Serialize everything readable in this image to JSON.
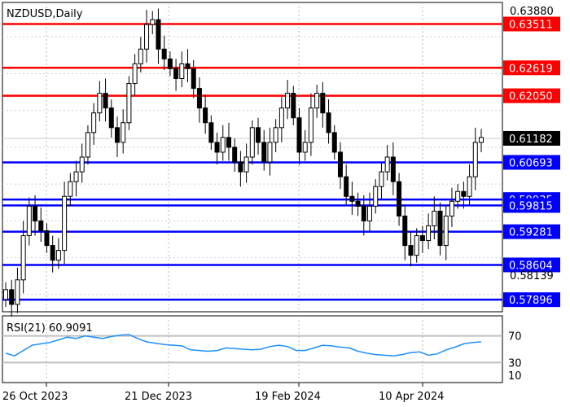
{
  "chart_data": {
    "type": "candlestick",
    "symbol_title": "NZDUSD,Daily",
    "price_axis": {
      "min": 0.5765,
      "max": 0.6395,
      "tick_labels": [
        "0.63880",
        "0.58139"
      ]
    },
    "dates": [
      "26 Oct 2023",
      "21 Dec 2023",
      "19 Feb 2024",
      "10 Apr 2024"
    ],
    "levels": [
      {
        "label": "0.63511",
        "value": 0.63511,
        "color": "#ff0000"
      },
      {
        "label": "0.62619",
        "value": 0.62619,
        "color": "#ff0000"
      },
      {
        "label": "0.62050",
        "value": 0.6205,
        "color": "#ff0000"
      },
      {
        "label": "0.60693",
        "value": 0.60693,
        "color": "#0000ff"
      },
      {
        "label": "0.59935",
        "value": 0.59935,
        "color": "#0000ff"
      },
      {
        "label": "0.59815",
        "value": 0.59815,
        "color": "#0000ff"
      },
      {
        "label": "0.59281",
        "value": 0.59281,
        "color": "#0000ff"
      },
      {
        "label": "0.58604",
        "value": 0.58604,
        "color": "#0000ff"
      },
      {
        "label": "0.57896",
        "value": 0.57896,
        "color": "#0000ff"
      }
    ],
    "current_price": {
      "label": "0.61182",
      "value": 0.61182,
      "color": "#000000"
    },
    "close_path": [
      0.581,
      0.578,
      0.583,
      0.592,
      0.598,
      0.595,
      0.593,
      0.59,
      0.587,
      0.589,
      0.6,
      0.603,
      0.605,
      0.608,
      0.613,
      0.617,
      0.621,
      0.618,
      0.614,
      0.611,
      0.615,
      0.623,
      0.627,
      0.63,
      0.635,
      0.636,
      0.63,
      0.628,
      0.626,
      0.624,
      0.627,
      0.626,
      0.622,
      0.618,
      0.615,
      0.611,
      0.609,
      0.612,
      0.61,
      0.607,
      0.605,
      0.608,
      0.614,
      0.611,
      0.607,
      0.611,
      0.614,
      0.618,
      0.621,
      0.616,
      0.609,
      0.611,
      0.618,
      0.621,
      0.617,
      0.613,
      0.609,
      0.604,
      0.6,
      0.599,
      0.598,
      0.595,
      0.598,
      0.602,
      0.605,
      0.608,
      0.603,
      0.596,
      0.59,
      0.588,
      0.592,
      0.591,
      0.594,
      0.597,
      0.59,
      0.596,
      0.599,
      0.601,
      0.6,
      0.604,
      0.611,
      0.612
    ],
    "rsi": {
      "label": "RSI(21) 60.9091",
      "value": 60.9091,
      "levels": [
        70,
        30
      ],
      "axis_labels": [
        "70",
        "30",
        "10"
      ],
      "color": "#1e90ff",
      "series": [
        44,
        40,
        48,
        56,
        58,
        60,
        64,
        68,
        66,
        70,
        68,
        66,
        69,
        71,
        72,
        66,
        61,
        59,
        57,
        56,
        55,
        49,
        48,
        47,
        48,
        52,
        51,
        50,
        49,
        50,
        54,
        56,
        54,
        48,
        48,
        52,
        56,
        55,
        53,
        52,
        47,
        44,
        42,
        41,
        40,
        42,
        45,
        46,
        41,
        43,
        49,
        53,
        58,
        60,
        61
      ]
    },
    "grid": true
  }
}
